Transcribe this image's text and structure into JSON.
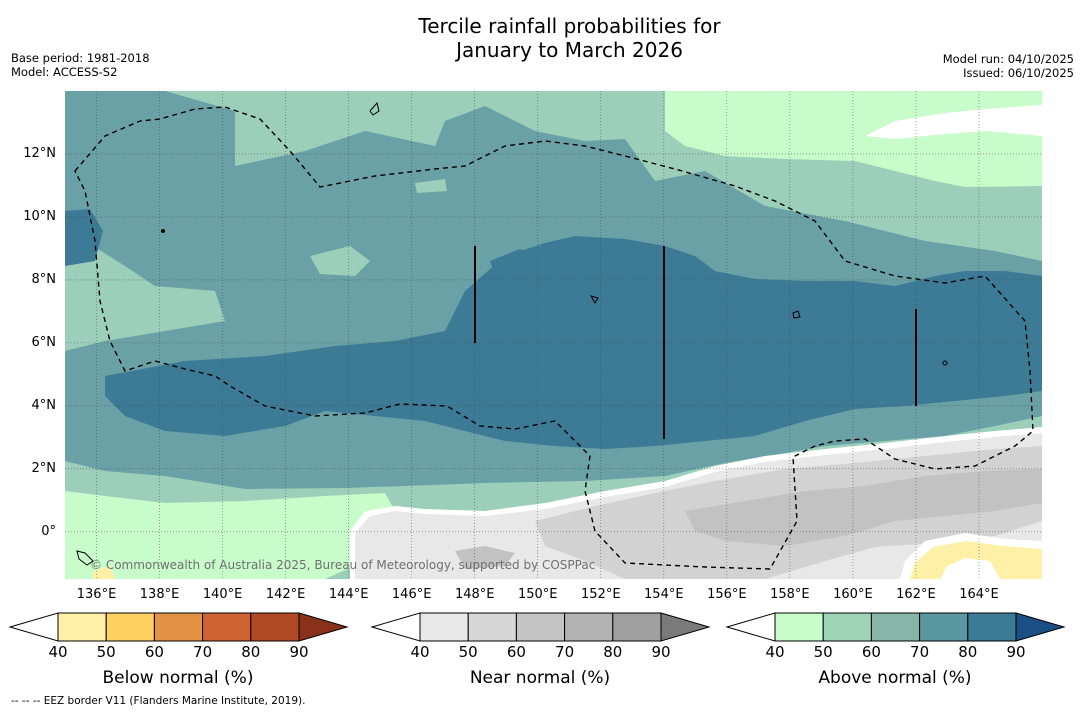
{
  "title_line1": "Tercile rainfall probabilities for",
  "title_line2": "January to March 2026",
  "meta": {
    "base_period": "Base period: 1981-2018",
    "model": "Model: ACCESS-S2",
    "model_run": "Model run: 04/10/2025",
    "issued": "Issued: 06/10/2025"
  },
  "map": {
    "lon_range": [
      135,
      166
    ],
    "lat_range": [
      -1.5,
      14
    ],
    "x_ticks": [
      "136°E",
      "138°E",
      "140°E",
      "142°E",
      "144°E",
      "146°E",
      "148°E",
      "150°E",
      "152°E",
      "154°E",
      "156°E",
      "158°E",
      "160°E",
      "162°E",
      "164°E"
    ],
    "y_ticks": [
      "12°N",
      "10°N",
      "8°N",
      "6°N",
      "4°N",
      "2°N",
      "0°"
    ],
    "credit": "© Commonwealth of Australia 2025, Bureau of Meteorology, supported by COSPPac"
  },
  "colorbars": {
    "tick_labels": [
      "40",
      "50",
      "60",
      "70",
      "80",
      "90"
    ],
    "below": {
      "title": "Below normal (%)",
      "colors": [
        "#ffffff",
        "#fff0a8",
        "#fdd062",
        "#e19343",
        "#cf6432",
        "#b04a25",
        "#8a3219"
      ]
    },
    "near": {
      "title": "Near normal (%)",
      "colors": [
        "#ffffff",
        "#e8e8e8",
        "#d6d6d6",
        "#c4c4c4",
        "#b2b2b2",
        "#a0a0a0",
        "#7a7a7a"
      ]
    },
    "above": {
      "title": "Above normal (%)",
      "colors": [
        "#ffffff",
        "#c8fcca",
        "#9fd4b9",
        "#86b6aa",
        "#5b97a0",
        "#3d7a96",
        "#1c4f84"
      ]
    }
  },
  "footer": "--  --  -- EEZ border V11 (Flanders Marine Institute, 2019)."
}
